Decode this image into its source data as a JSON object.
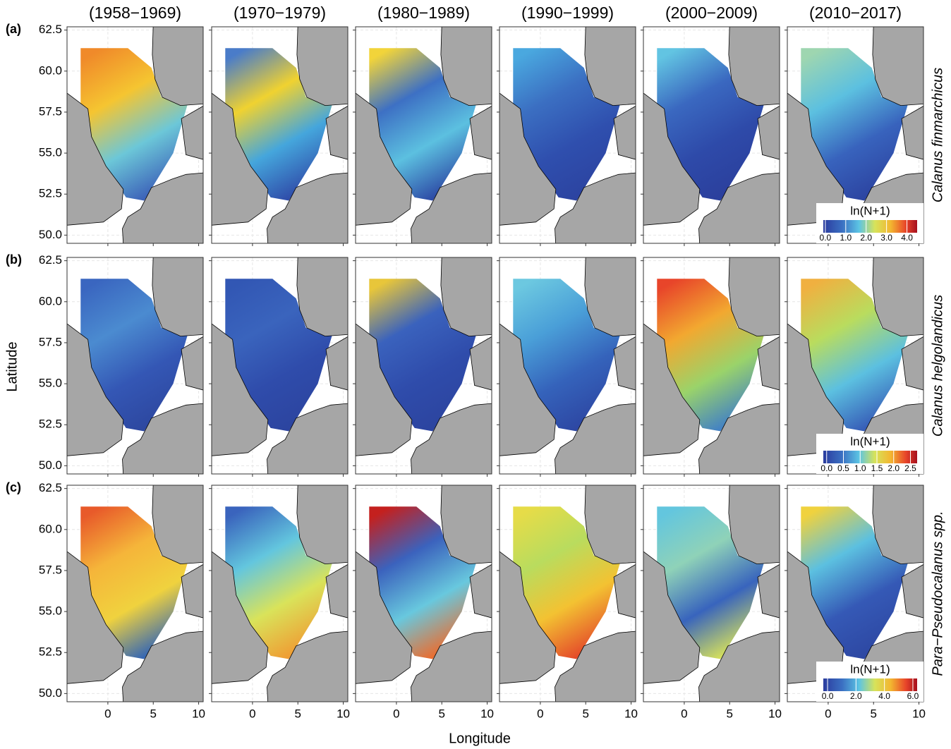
{
  "chart_data": {
    "type": "map-grid",
    "x_label": "Longitude",
    "y_label": "Latitude",
    "columns": [
      "(1958−1969)",
      "(1970−1979)",
      "(1980−1989)",
      "(1990−1999)",
      "(2000−2009)",
      "(2010−2017)"
    ],
    "xlim": [
      -4.5,
      10.5
    ],
    "xticks": [
      0,
      5,
      10
    ],
    "ylim": [
      49.5,
      62.7
    ],
    "yticks": [
      {
        "value": 50,
        "label": "50.0"
      },
      52.5,
      {
        "value": 55,
        "label": "55.0"
      },
      57.5,
      {
        "value": 60,
        "label": "60.0"
      },
      62.5
    ],
    "grid": true,
    "rows": [
      {
        "tag": "(a)",
        "species": "Calanus finmarchicus",
        "legend": {
          "title": "ln(N+1)",
          "lim": [
            -0.1,
            4.5
          ],
          "ticks": [
            {
              "value": 0,
              "label": "0.0"
            },
            {
              "value": 1,
              "label": "1.0"
            },
            {
              "value": 2,
              "label": "2.0"
            },
            {
              "value": 3,
              "label": "3.0"
            },
            {
              "value": 4,
              "label": "4.0"
            }
          ]
        }
      },
      {
        "tag": "(b)",
        "species": "Calanus helgolandicus",
        "legend": {
          "title": "ln(N+1)",
          "lim": [
            -0.1,
            2.7
          ],
          "ticks": [
            {
              "value": 0,
              "label": "0.0"
            },
            0.5,
            {
              "value": 1,
              "label": "1.0"
            },
            1.5,
            {
              "value": 2,
              "label": "2.0"
            },
            2.5
          ]
        }
      },
      {
        "tag": "(c)",
        "species": "Para−Pseudocalanus spp.",
        "legend": {
          "title": "ln(N+1)",
          "lim": [
            -0.3,
            6.3
          ],
          "ticks": [
            {
              "value": 0,
              "label": "0.0"
            },
            {
              "value": 2,
              "label": "2.0"
            },
            {
              "value": 4,
              "label": "4.0"
            },
            {
              "value": 6,
              "label": "6.0"
            }
          ]
        }
      }
    ]
  }
}
